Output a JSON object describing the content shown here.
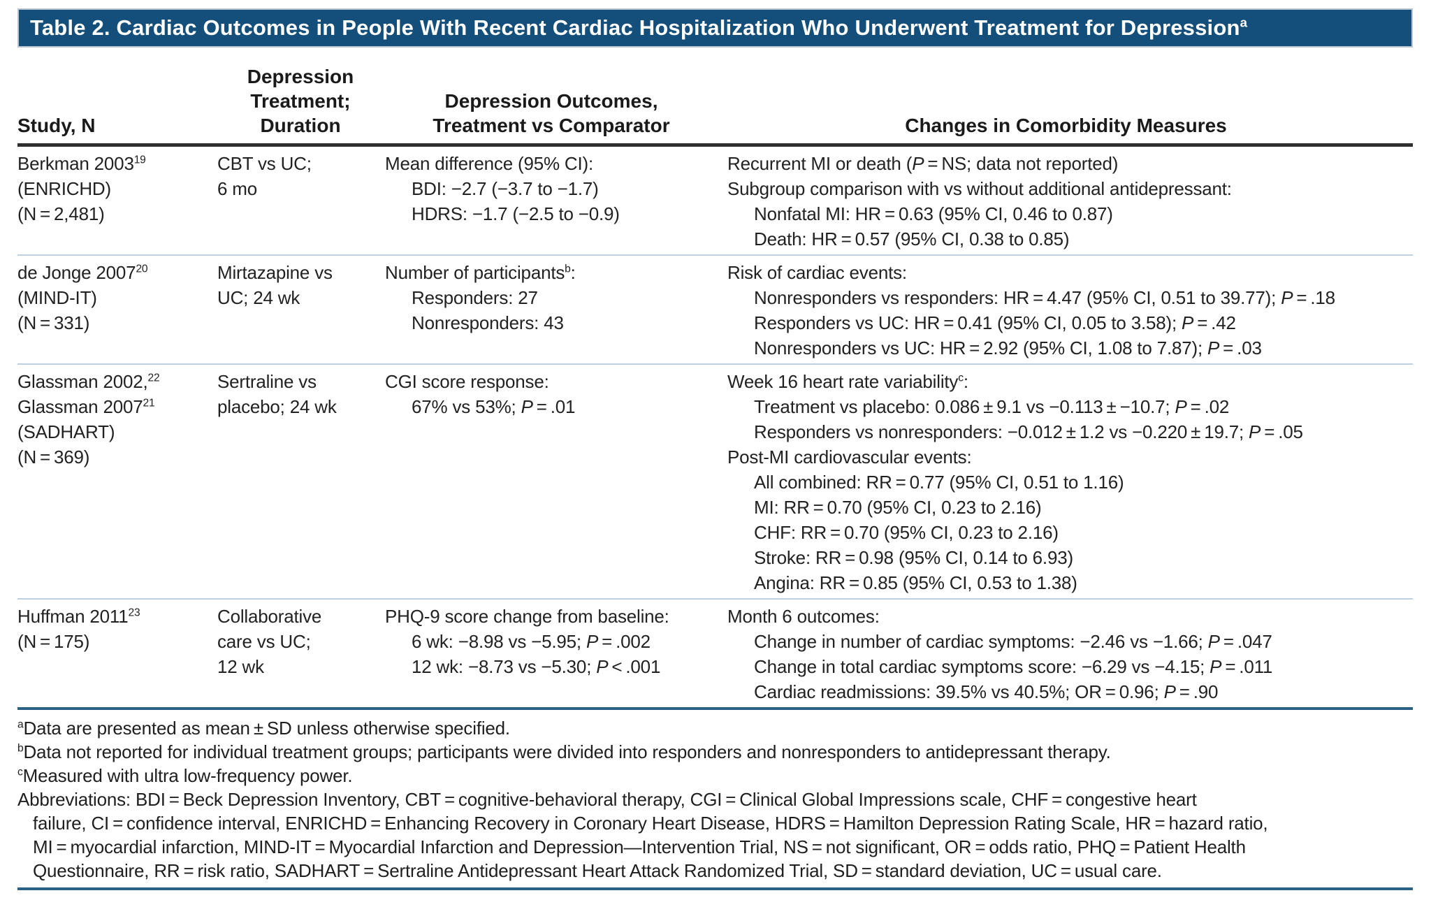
{
  "colors": {
    "title_bar_bg": "#134f7a",
    "title_bar_border": "#b9c6d0",
    "title_text": "#ffffff",
    "header_rule": "#2f2f2f",
    "row_divider": "#bdd1e0",
    "heavy_rule": "#2c6186",
    "body_text": "#222222"
  },
  "title": "Table 2. Cardiac Outcomes in People With Recent Cardiac Hospitalization Who Underwent Treatment for Depression^a^",
  "columns": [
    {
      "label": "Study, N"
    },
    {
      "label": "Depression\nTreatment;\nDuration"
    },
    {
      "label": "Depression Outcomes,\nTreatment vs Comparator"
    },
    {
      "label": "Changes in Comorbidity Measures"
    }
  ],
  "rows": [
    {
      "study": [
        {
          "t": "Berkman 2003^19^"
        },
        {
          "t": "(ENRICHD)"
        },
        {
          "t": "(N = 2,481)"
        }
      ],
      "treatment": [
        {
          "t": "CBT vs UC;"
        },
        {
          "t": "6 mo"
        }
      ],
      "outcomes": [
        {
          "t": "Mean difference (95% CI):"
        },
        {
          "t": "BDI: −2.7 (−3.7 to −1.7)",
          "i": 1
        },
        {
          "t": "HDRS: −1.7 (−2.5 to −0.9)",
          "i": 1
        }
      ],
      "comorbidity": [
        {
          "t": "Recurrent MI or death (*P* = NS; data not reported)"
        },
        {
          "t": "Subgroup comparison with vs without additional antidepressant:"
        },
        {
          "t": "Nonfatal MI: HR = 0.63 (95% CI, 0.46 to 0.87)",
          "i": 1
        },
        {
          "t": "Death: HR = 0.57 (95% CI, 0.38 to 0.85)",
          "i": 1
        }
      ]
    },
    {
      "study": [
        {
          "t": "de Jonge 2007^20^"
        },
        {
          "t": "(MIND-IT)"
        },
        {
          "t": "(N = 331)"
        }
      ],
      "treatment": [
        {
          "t": "Mirtazapine vs"
        },
        {
          "t": "UC; 24 wk"
        }
      ],
      "outcomes": [
        {
          "t": "Number of participants^b^:"
        },
        {
          "t": "Responders: 27",
          "i": 1
        },
        {
          "t": "Nonresponders: 43",
          "i": 1
        }
      ],
      "comorbidity": [
        {
          "t": "Risk of cardiac events:"
        },
        {
          "t": "Nonresponders vs responders: HR = 4.47 (95% CI, 0.51 to 39.77); *P* = .18",
          "i": 1
        },
        {
          "t": "Responders vs UC: HR = 0.41 (95% CI, 0.05 to 3.58); *P* = .42",
          "i": 1
        },
        {
          "t": "Nonresponders vs UC: HR = 2.92 (95% CI, 1.08 to 7.87); *P* = .03",
          "i": 1
        }
      ]
    },
    {
      "study": [
        {
          "t": "Glassman 2002,^22^"
        },
        {
          "t": "Glassman 2007^21^"
        },
        {
          "t": "(SADHART)"
        },
        {
          "t": "(N = 369)"
        }
      ],
      "treatment": [
        {
          "t": "Sertraline vs"
        },
        {
          "t": "placebo; 24 wk"
        }
      ],
      "outcomes": [
        {
          "t": "CGI score response:"
        },
        {
          "t": "67% vs 53%; *P* = .01",
          "i": 1
        }
      ],
      "comorbidity": [
        {
          "t": "Week 16 heart rate variability^c^:"
        },
        {
          "t": "Treatment vs placebo: 0.086 ± 9.1 vs −0.113 ± −10.7; *P* = .02",
          "i": 1
        },
        {
          "t": "Responders vs nonresponders: −0.012 ± 1.2 vs −0.220 ± 19.7; *P* = .05",
          "i": 1
        },
        {
          "t": "Post-MI cardiovascular events:"
        },
        {
          "t": "All combined: RR = 0.77 (95% CI, 0.51 to 1.16)",
          "i": 1
        },
        {
          "t": "MI: RR = 0.70 (95% CI, 0.23 to 2.16)",
          "i": 1
        },
        {
          "t": "CHF: RR = 0.70 (95% CI, 0.23 to 2.16)",
          "i": 1
        },
        {
          "t": "Stroke: RR = 0.98 (95% CI, 0.14 to 6.93)",
          "i": 1
        },
        {
          "t": "Angina: RR = 0.85 (95% CI, 0.53 to 1.38)",
          "i": 1
        }
      ]
    },
    {
      "study": [
        {
          "t": "Huffman 2011^23^"
        },
        {
          "t": "(N = 175)"
        }
      ],
      "treatment": [
        {
          "t": "Collaborative"
        },
        {
          "t": "care vs UC;"
        },
        {
          "t": "12 wk"
        }
      ],
      "outcomes": [
        {
          "t": "PHQ-9 score change from baseline:"
        },
        {
          "t": "6 wk: −8.98 vs −5.95; *P* = .002",
          "i": 1
        },
        {
          "t": "12 wk: −8.73 vs −5.30; *P* < .001",
          "i": 1
        }
      ],
      "comorbidity": [
        {
          "t": "Month 6 outcomes:"
        },
        {
          "t": "Change in number of cardiac symptoms: −2.46 vs −1.66; *P* = .047",
          "i": 1
        },
        {
          "t": "Change in total cardiac symptoms score: −6.29 vs −4.15; *P* = .011",
          "i": 1
        },
        {
          "t": "Cardiac readmissions: 39.5% vs 40.5%; OR = 0.96; *P* = .90",
          "i": 1
        }
      ]
    }
  ],
  "footnotes": [
    {
      "t": "^a^Data are presented as mean ± SD unless otherwise specified."
    },
    {
      "t": "^b^Data not reported for individual treatment groups; participants were divided into responders and nonresponders to antidepressant therapy."
    },
    {
      "t": "^c^Measured with ultra low-frequency power."
    },
    {
      "t": "Abbreviations: BDI = Beck Depression Inventory, CBT = cognitive-behavioral therapy, CGI = Clinical Global Impressions scale, CHF = congestive heart"
    },
    {
      "t": "failure, CI = confidence interval, ENRICHD = Enhancing Recovery in Coronary Heart Disease, HDRS = Hamilton Depression Rating Scale, HR = hazard ratio,",
      "i": 1
    },
    {
      "t": "MI = myocardial infarction, MIND-IT = Myocardial Infarction and Depression—Intervention Trial, NS = not significant, OR = odds ratio, PHQ = Patient Health",
      "i": 1
    },
    {
      "t": "Questionnaire, RR = risk ratio, SADHART = Sertraline Antidepressant Heart Attack Randomized Trial, SD = standard deviation, UC = usual care.",
      "i": 1
    }
  ]
}
